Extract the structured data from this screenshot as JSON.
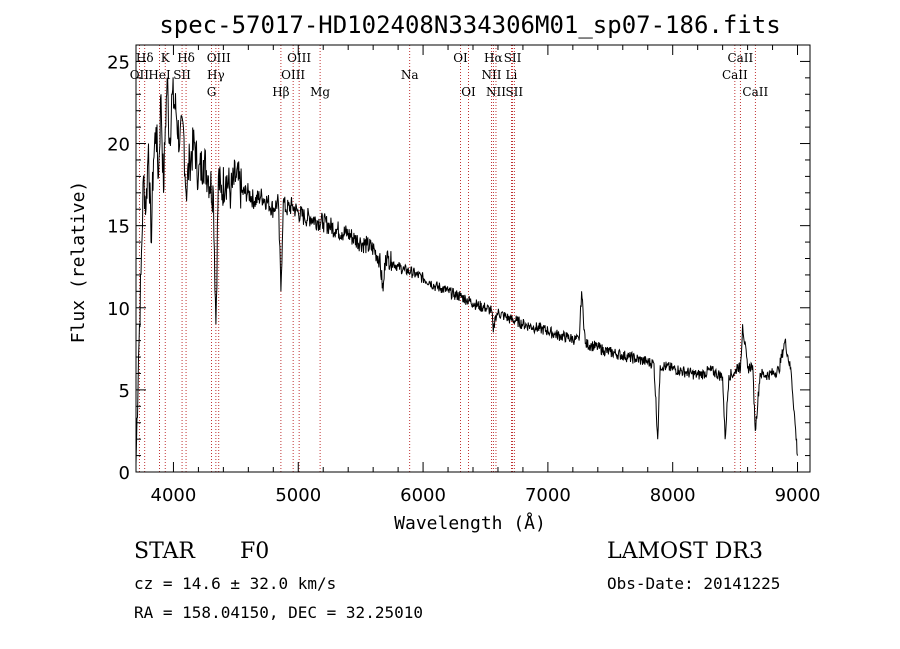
{
  "chart_data": {
    "type": "line",
    "title": "spec-57017-HD102408N334306M01_sp07-186.fits",
    "xlabel": "Wavelength (Å)",
    "ylabel": "Flux (relative)",
    "xlim": [
      3700,
      9100
    ],
    "ylim": [
      0,
      26
    ],
    "xticks": [
      4000,
      5000,
      6000,
      7000,
      8000,
      9000
    ],
    "yticks": [
      0,
      5,
      10,
      15,
      20,
      25
    ],
    "series": [
      {
        "name": "flux",
        "x": [
          3700,
          3720,
          3740,
          3760,
          3780,
          3800,
          3820,
          3840,
          3860,
          3880,
          3900,
          3920,
          3935,
          3950,
          3968,
          3990,
          4020,
          4050,
          4080,
          4101,
          4130,
          4170,
          4200,
          4240,
          4280,
          4320,
          4340,
          4360,
          4380,
          4420,
          4460,
          4500,
          4550,
          4600,
          4650,
          4700,
          4750,
          4800,
          4840,
          4861,
          4880,
          4900,
          4950,
          5000,
          5050,
          5100,
          5150,
          5200,
          5250,
          5300,
          5350,
          5400,
          5450,
          5500,
          5550,
          5600,
          5650,
          5680,
          5700,
          5720,
          5750,
          5800,
          5850,
          5900,
          5950,
          6000,
          6050,
          6100,
          6150,
          6200,
          6250,
          6300,
          6350,
          6400,
          6450,
          6500,
          6550,
          6563,
          6580,
          6600,
          6650,
          6700,
          6750,
          6800,
          6850,
          6900,
          6950,
          7000,
          7050,
          7100,
          7150,
          7200,
          7250,
          7270,
          7300,
          7350,
          7400,
          7450,
          7500,
          7550,
          7600,
          7650,
          7700,
          7750,
          7800,
          7850,
          7880,
          7900,
          7950,
          8000,
          8050,
          8100,
          8150,
          8200,
          8250,
          8300,
          8350,
          8400,
          8420,
          8450,
          8498,
          8520,
          8542,
          8560,
          8600,
          8640,
          8662,
          8700,
          8750,
          8800,
          8850,
          8900,
          8950,
          9000
        ],
        "y": [
          0.5,
          7,
          12,
          18,
          16,
          20,
          14,
          19,
          21,
          18,
          23,
          17,
          21,
          24,
          20,
          23,
          22,
          20,
          21,
          17,
          19,
          20,
          18,
          19,
          18,
          17,
          9,
          18,
          17,
          18,
          17,
          18,
          17,
          17,
          16.5,
          16.8,
          16.5,
          16,
          16.5,
          11,
          16.5,
          16,
          16.2,
          15.8,
          15.5,
          15.5,
          15.3,
          15.2,
          15,
          14.8,
          14.6,
          14.5,
          14.2,
          14,
          13.8,
          13.6,
          13,
          11,
          13.2,
          13,
          12.8,
          12.5,
          12.3,
          12.2,
          12,
          11.8,
          11.6,
          11.3,
          11.2,
          11,
          10.8,
          10.7,
          10.5,
          10.3,
          10.1,
          10,
          9.8,
          8.5,
          9.5,
          9.7,
          9.5,
          9.3,
          9.2,
          9,
          8.9,
          8.8,
          8.7,
          8.6,
          8.4,
          8.3,
          8.2,
          8.1,
          8,
          11,
          7.8,
          7.7,
          7.6,
          7.4,
          7.3,
          7.2,
          7.1,
          7,
          6.9,
          6.8,
          6.7,
          6.6,
          2,
          6.5,
          6.4,
          6.3,
          6.2,
          6.1,
          6,
          5.9,
          6,
          6.2,
          6,
          5.8,
          2,
          5.9,
          6,
          6.5,
          6.2,
          9,
          6.3,
          6.5,
          2.5,
          6,
          5.9,
          6,
          6.2,
          8,
          6,
          1
        ]
      }
    ],
    "line_markers": [
      {
        "label": "Hδ",
        "x": 3770,
        "row": 0
      },
      {
        "label": "K",
        "x": 3934,
        "row": 0
      },
      {
        "label": "Hδ",
        "x": 4101,
        "row": 0
      },
      {
        "label": "OII",
        "x": 3727,
        "row": 1
      },
      {
        "label": "HeI",
        "x": 3889,
        "row": 1
      },
      {
        "label": "SII",
        "x": 4069,
        "row": 1
      },
      {
        "label": "OIII",
        "x": 4363,
        "row": 0
      },
      {
        "label": "Hγ",
        "x": 4340,
        "row": 1
      },
      {
        "label": "G",
        "x": 4305,
        "row": 2
      },
      {
        "label": "OIII",
        "x": 5007,
        "row": 0
      },
      {
        "label": "OIII",
        "x": 4959,
        "row": 1
      },
      {
        "label": "Hβ",
        "x": 4861,
        "row": 2
      },
      {
        "label": "Mg",
        "x": 5175,
        "row": 2
      },
      {
        "label": "Na",
        "x": 5893,
        "row": 1
      },
      {
        "label": "OI",
        "x": 6300,
        "row": 0
      },
      {
        "label": "OI",
        "x": 6364,
        "row": 2
      },
      {
        "label": "Hα",
        "x": 6563,
        "row": 0
      },
      {
        "label": "NII",
        "x": 6548,
        "row": 1
      },
      {
        "label": "NII",
        "x": 6584,
        "row": 2
      },
      {
        "label": "SII",
        "x": 6717,
        "row": 0
      },
      {
        "label": "Li",
        "x": 6708,
        "row": 1
      },
      {
        "label": "SII",
        "x": 6731,
        "row": 2
      },
      {
        "label": "CaII",
        "x": 8542,
        "row": 0
      },
      {
        "label": "CaII",
        "x": 8498,
        "row": 1
      },
      {
        "label": "CaII",
        "x": 8662,
        "row": 2
      }
    ]
  },
  "info": {
    "object_class": "STAR",
    "subclass": "F0",
    "cz": "cz = 14.6 ± 32.0 km/s",
    "radec": "RA = 158.04150, DEC =  32.25010",
    "survey": "LAMOST DR3",
    "obs_date": "Obs-Date: 20141225"
  },
  "colors": {
    "spectrum": "#000000",
    "marker": "#b00000"
  }
}
